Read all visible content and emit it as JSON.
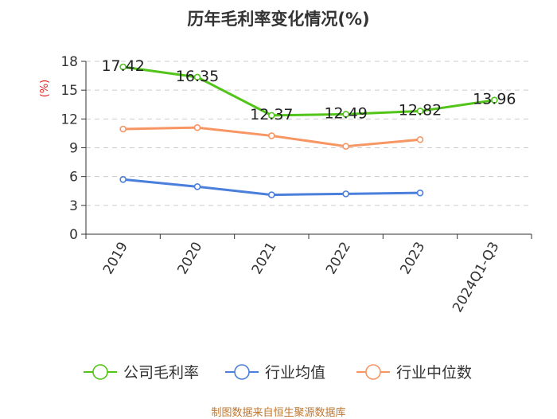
{
  "chart_data": {
    "type": "line",
    "title": "历年毛利率变化情况(%)",
    "ylabel": "(%)",
    "categories": [
      "2019",
      "2020",
      "2021",
      "2022",
      "2023",
      "2024Q1-Q3"
    ],
    "ylim": [
      0,
      18
    ],
    "yticks": [
      0,
      3,
      6,
      9,
      12,
      15,
      18
    ],
    "grid": true,
    "legend_position": "bottom",
    "series": [
      {
        "name": "公司毛利率",
        "color": "#52c41a",
        "values": [
          17.42,
          16.35,
          12.37,
          12.49,
          12.82,
          13.96
        ],
        "labels": [
          "17.42",
          "16.35",
          "12.37",
          "12.49",
          "12.82",
          "13.96"
        ]
      },
      {
        "name": "行业均值",
        "color": "#4a7fdc",
        "values": [
          5.7,
          4.95,
          4.1,
          4.2,
          4.3,
          null
        ]
      },
      {
        "name": "行业中位数",
        "color": "#f79563",
        "values": [
          10.95,
          11.1,
          10.25,
          9.15,
          9.85,
          null
        ]
      }
    ]
  },
  "source": "制图数据来自恒生聚源数据库"
}
